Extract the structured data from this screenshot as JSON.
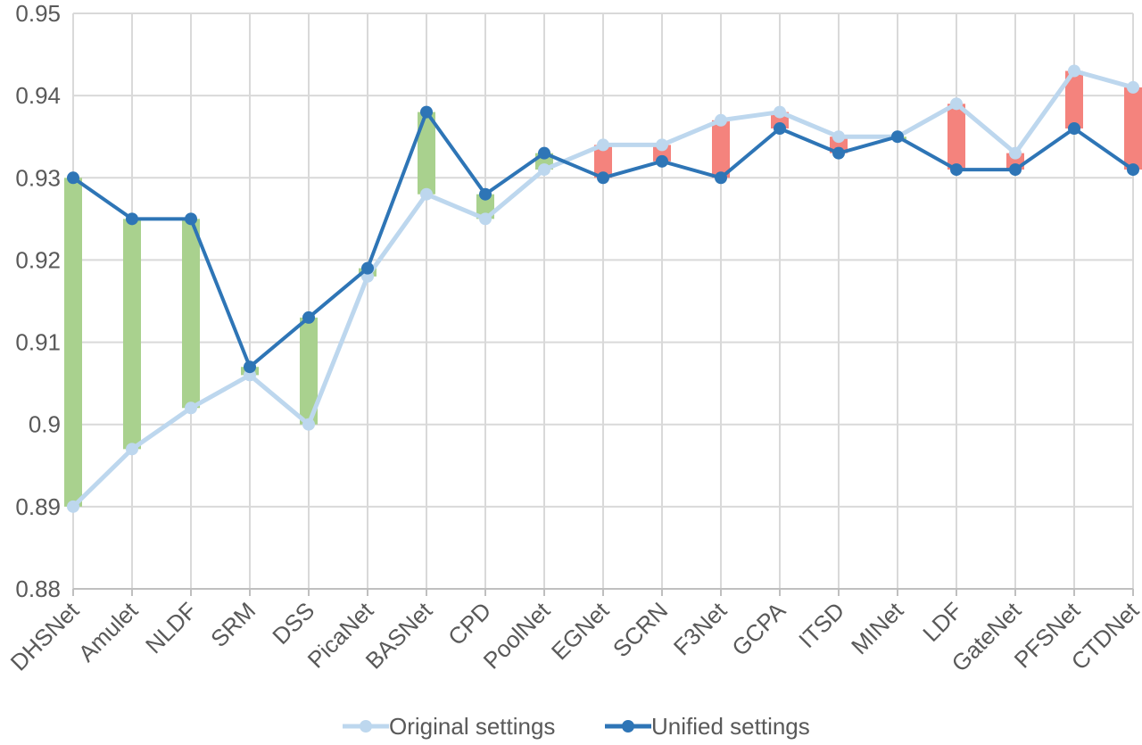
{
  "chart_data": {
    "type": "line",
    "categories": [
      "DHSNet",
      "Amulet",
      "NLDF",
      "SRM",
      "DSS",
      "PicaNet",
      "BASNet",
      "CPD",
      "PoolNet",
      "EGNet",
      "SCRN",
      "F3Net",
      "GCPA",
      "ITSD",
      "MINet",
      "LDF",
      "GateNet",
      "PFSNet",
      "CTDNet"
    ],
    "series": [
      {
        "name": "Original settings",
        "color": "#bdd7ee",
        "values": [
          0.89,
          0.897,
          0.902,
          0.906,
          0.9,
          0.918,
          0.928,
          0.925,
          0.931,
          0.934,
          0.934,
          0.937,
          0.938,
          0.935,
          0.935,
          0.939,
          0.933,
          0.943,
          0.941
        ]
      },
      {
        "name": "Unified settings",
        "color": "#2e75b6",
        "values": [
          0.93,
          0.925,
          0.925,
          0.907,
          0.913,
          0.919,
          0.938,
          0.928,
          0.933,
          0.93,
          0.932,
          0.93,
          0.936,
          0.933,
          0.935,
          0.931,
          0.931,
          0.936,
          0.931
        ]
      }
    ],
    "difference_bars": {
      "improved_color": "#a9d18e",
      "declined_color": "#f4837d"
    },
    "yticks": [
      "0.88",
      "0.89",
      "0.9",
      "0.91",
      "0.92",
      "0.93",
      "0.94",
      "0.95"
    ],
    "ylim": [
      0.88,
      0.95
    ],
    "grid": true,
    "legend_position": "bottom-center",
    "title": "",
    "xlabel": "",
    "ylabel": ""
  }
}
